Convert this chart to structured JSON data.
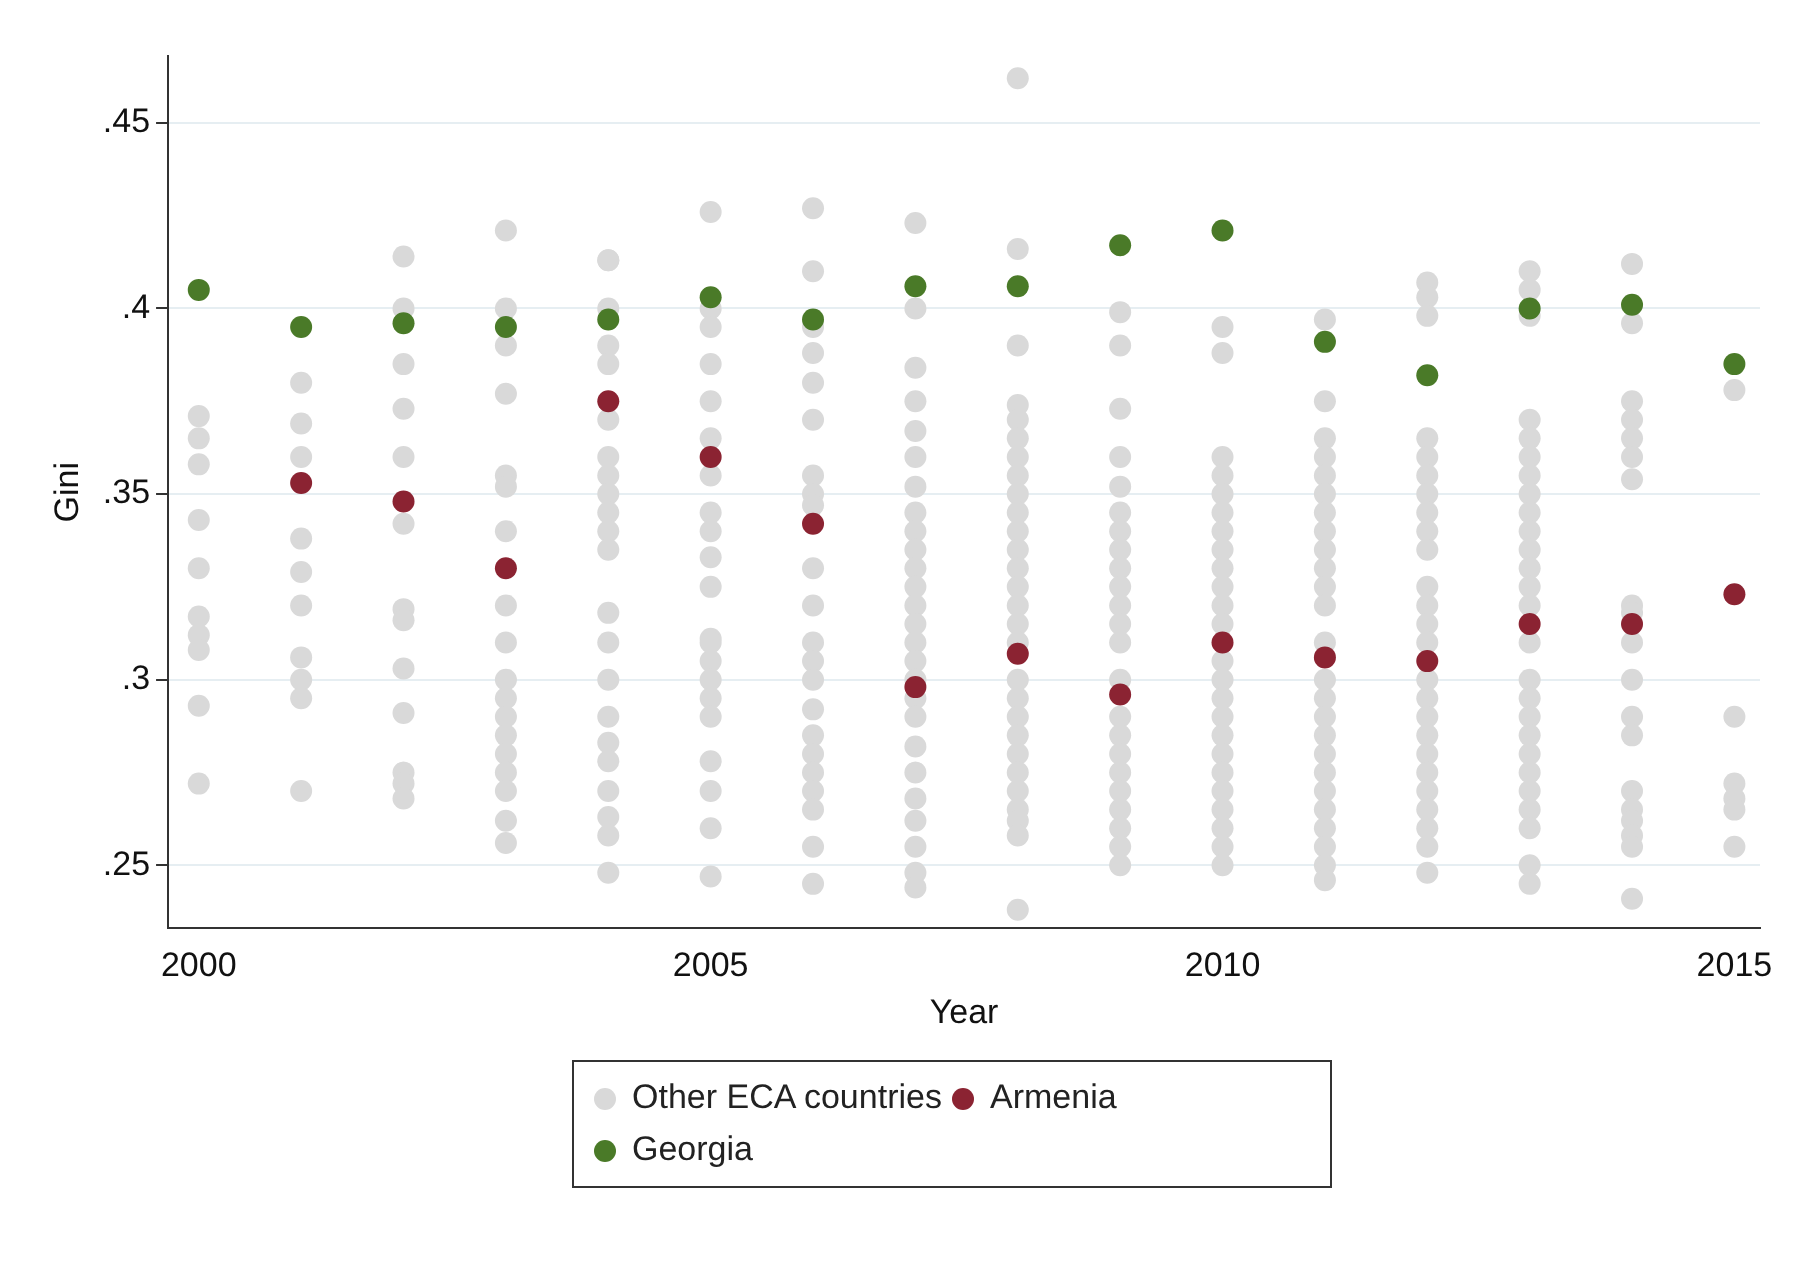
{
  "chart_data": {
    "type": "scatter",
    "xlabel": "Year",
    "ylabel": "Gini",
    "xlim": [
      1999.7,
      2015.25
    ],
    "xticks": [
      2000,
      2005,
      2010,
      2015
    ],
    "ylim": [
      0.233,
      0.468
    ],
    "yticks": [
      {
        "value": 0.25,
        "label": ".25"
      },
      {
        "value": 0.3,
        "label": ".3"
      },
      {
        "value": 0.35,
        "label": ".35"
      },
      {
        "value": 0.4,
        "label": ".4"
      },
      {
        "value": 0.45,
        "label": ".45"
      }
    ],
    "grid": "y",
    "legend": "bottom",
    "marker": "circle",
    "series": [
      {
        "name": "Other ECA countries",
        "color": "#d9d9d9",
        "x": [
          2000,
          2000,
          2000,
          2000,
          2000,
          2000,
          2000,
          2000,
          2000,
          2000,
          2001,
          2001,
          2001,
          2001,
          2001,
          2001,
          2001,
          2001,
          2001,
          2001,
          2002,
          2002,
          2002,
          2002,
          2002,
          2002,
          2002,
          2002,
          2002,
          2002,
          2002,
          2002,
          2002,
          2003,
          2003,
          2003,
          2003,
          2003,
          2003,
          2003,
          2003,
          2003,
          2003,
          2003,
          2003,
          2003,
          2003,
          2003,
          2003,
          2003,
          2003,
          2004,
          2004,
          2004,
          2004,
          2004,
          2004,
          2004,
          2004,
          2004,
          2004,
          2004,
          2004,
          2004,
          2004,
          2004,
          2004,
          2004,
          2004,
          2004,
          2004,
          2004,
          2004,
          2005,
          2005,
          2005,
          2005,
          2005,
          2005,
          2005,
          2005,
          2005,
          2005,
          2005,
          2005,
          2005,
          2005,
          2005,
          2005,
          2005,
          2005,
          2005,
          2005,
          2005,
          2006,
          2006,
          2006,
          2006,
          2006,
          2006,
          2006,
          2006,
          2006,
          2006,
          2006,
          2006,
          2006,
          2006,
          2006,
          2006,
          2006,
          2006,
          2006,
          2006,
          2006,
          2006,
          2007,
          2007,
          2007,
          2007,
          2007,
          2007,
          2007,
          2007,
          2007,
          2007,
          2007,
          2007,
          2007,
          2007,
          2007,
          2007,
          2007,
          2007,
          2007,
          2007,
          2007,
          2007,
          2007,
          2007,
          2007,
          2007,
          2008,
          2008,
          2008,
          2008,
          2008,
          2008,
          2008,
          2008,
          2008,
          2008,
          2008,
          2008,
          2008,
          2008,
          2008,
          2008,
          2008,
          2008,
          2008,
          2008,
          2008,
          2008,
          2008,
          2008,
          2008,
          2008,
          2008,
          2008,
          2009,
          2009,
          2009,
          2009,
          2009,
          2009,
          2009,
          2009,
          2009,
          2009,
          2009,
          2009,
          2009,
          2009,
          2009,
          2009,
          2009,
          2009,
          2009,
          2009,
          2009,
          2009,
          2009,
          2010,
          2010,
          2010,
          2010,
          2010,
          2010,
          2010,
          2010,
          2010,
          2010,
          2010,
          2010,
          2010,
          2010,
          2010,
          2010,
          2010,
          2010,
          2010,
          2010,
          2010,
          2010,
          2010,
          2010,
          2011,
          2011,
          2011,
          2011,
          2011,
          2011,
          2011,
          2011,
          2011,
          2011,
          2011,
          2011,
          2011,
          2011,
          2011,
          2011,
          2011,
          2011,
          2011,
          2011,
          2011,
          2011,
          2011,
          2011,
          2011,
          2012,
          2012,
          2012,
          2012,
          2012,
          2012,
          2012,
          2012,
          2012,
          2012,
          2012,
          2012,
          2012,
          2012,
          2012,
          2012,
          2012,
          2012,
          2012,
          2012,
          2012,
          2012,
          2012,
          2012,
          2012,
          2013,
          2013,
          2013,
          2013,
          2013,
          2013,
          2013,
          2013,
          2013,
          2013,
          2013,
          2013,
          2013,
          2013,
          2013,
          2013,
          2013,
          2013,
          2013,
          2013,
          2013,
          2013,
          2013,
          2013,
          2013,
          2013,
          2014,
          2014,
          2014,
          2014,
          2014,
          2014,
          2014,
          2014,
          2014,
          2014,
          2014,
          2014,
          2014,
          2014,
          2014,
          2014,
          2014,
          2014,
          2014,
          2015,
          2015,
          2015,
          2015,
          2015,
          2015
        ],
        "values": [
          0.371,
          0.365,
          0.358,
          0.343,
          0.33,
          0.317,
          0.312,
          0.308,
          0.293,
          0.272,
          0.38,
          0.369,
          0.36,
          0.338,
          0.329,
          0.32,
          0.306,
          0.3,
          0.295,
          0.27,
          0.414,
          0.4,
          0.385,
          0.373,
          0.36,
          0.342,
          0.319,
          0.316,
          0.303,
          0.291,
          0.275,
          0.272,
          0.268,
          0.421,
          0.4,
          0.39,
          0.377,
          0.355,
          0.352,
          0.34,
          0.32,
          0.31,
          0.3,
          0.295,
          0.29,
          0.285,
          0.28,
          0.275,
          0.27,
          0.262,
          0.256,
          0.413,
          0.4,
          0.39,
          0.385,
          0.37,
          0.36,
          0.355,
          0.35,
          0.345,
          0.34,
          0.335,
          0.318,
          0.31,
          0.3,
          0.29,
          0.283,
          0.278,
          0.27,
          0.263,
          0.258,
          0.248,
          0.413,
          0.426,
          0.4,
          0.395,
          0.385,
          0.375,
          0.365,
          0.355,
          0.345,
          0.34,
          0.333,
          0.325,
          0.311,
          0.305,
          0.3,
          0.295,
          0.29,
          0.278,
          0.27,
          0.26,
          0.247,
          0.31,
          0.427,
          0.41,
          0.395,
          0.388,
          0.38,
          0.37,
          0.355,
          0.35,
          0.347,
          0.33,
          0.32,
          0.31,
          0.305,
          0.3,
          0.292,
          0.285,
          0.28,
          0.275,
          0.27,
          0.265,
          0.255,
          0.245,
          0.423,
          0.4,
          0.384,
          0.375,
          0.367,
          0.36,
          0.352,
          0.345,
          0.34,
          0.335,
          0.33,
          0.325,
          0.32,
          0.315,
          0.31,
          0.305,
          0.3,
          0.295,
          0.29,
          0.282,
          0.275,
          0.268,
          0.262,
          0.255,
          0.248,
          0.244,
          0.462,
          0.416,
          0.39,
          0.374,
          0.37,
          0.365,
          0.36,
          0.355,
          0.35,
          0.345,
          0.34,
          0.335,
          0.33,
          0.325,
          0.32,
          0.315,
          0.31,
          0.3,
          0.295,
          0.29,
          0.285,
          0.28,
          0.275,
          0.27,
          0.265,
          0.262,
          0.258,
          0.238,
          0.399,
          0.39,
          0.373,
          0.36,
          0.352,
          0.345,
          0.34,
          0.335,
          0.33,
          0.325,
          0.32,
          0.315,
          0.31,
          0.3,
          0.29,
          0.285,
          0.28,
          0.275,
          0.27,
          0.265,
          0.26,
          0.255,
          0.25,
          0.395,
          0.388,
          0.36,
          0.355,
          0.35,
          0.345,
          0.34,
          0.335,
          0.33,
          0.325,
          0.32,
          0.315,
          0.305,
          0.3,
          0.295,
          0.29,
          0.285,
          0.28,
          0.275,
          0.27,
          0.265,
          0.26,
          0.255,
          0.25,
          0.397,
          0.375,
          0.365,
          0.36,
          0.355,
          0.35,
          0.345,
          0.34,
          0.335,
          0.33,
          0.325,
          0.32,
          0.31,
          0.3,
          0.295,
          0.29,
          0.285,
          0.28,
          0.275,
          0.27,
          0.265,
          0.26,
          0.255,
          0.25,
          0.246,
          0.407,
          0.403,
          0.398,
          0.365,
          0.36,
          0.355,
          0.35,
          0.345,
          0.34,
          0.335,
          0.325,
          0.32,
          0.315,
          0.31,
          0.3,
          0.295,
          0.29,
          0.285,
          0.28,
          0.275,
          0.27,
          0.265,
          0.26,
          0.255,
          0.248,
          0.41,
          0.405,
          0.398,
          0.37,
          0.365,
          0.36,
          0.355,
          0.35,
          0.345,
          0.34,
          0.335,
          0.33,
          0.325,
          0.32,
          0.31,
          0.3,
          0.295,
          0.29,
          0.285,
          0.28,
          0.275,
          0.27,
          0.265,
          0.26,
          0.25,
          0.245,
          0.412,
          0.396,
          0.375,
          0.37,
          0.365,
          0.36,
          0.354,
          0.32,
          0.318,
          0.31,
          0.3,
          0.29,
          0.285,
          0.27,
          0.265,
          0.262,
          0.258,
          0.255,
          0.241,
          0.378,
          0.29,
          0.272,
          0.268,
          0.265,
          0.255
        ]
      },
      {
        "name": "Armenia",
        "color": "#8b2332",
        "x": [
          2001,
          2002,
          2003,
          2004,
          2005,
          2006,
          2007,
          2008,
          2009,
          2010,
          2011,
          2012,
          2013,
          2014,
          2015
        ],
        "values": [
          0.353,
          0.348,
          0.33,
          0.375,
          0.36,
          0.342,
          0.298,
          0.307,
          0.296,
          0.31,
          0.306,
          0.305,
          0.315,
          0.315,
          0.323
        ]
      },
      {
        "name": "Georgia",
        "color": "#4a7a28",
        "x": [
          2000,
          2001,
          2002,
          2003,
          2004,
          2005,
          2006,
          2007,
          2008,
          2009,
          2010,
          2011,
          2012,
          2013,
          2014,
          2015
        ],
        "values": [
          0.405,
          0.395,
          0.396,
          0.395,
          0.397,
          0.403,
          0.397,
          0.406,
          0.406,
          0.417,
          0.421,
          0.391,
          0.382,
          0.4,
          0.401,
          0.385
        ]
      }
    ]
  }
}
